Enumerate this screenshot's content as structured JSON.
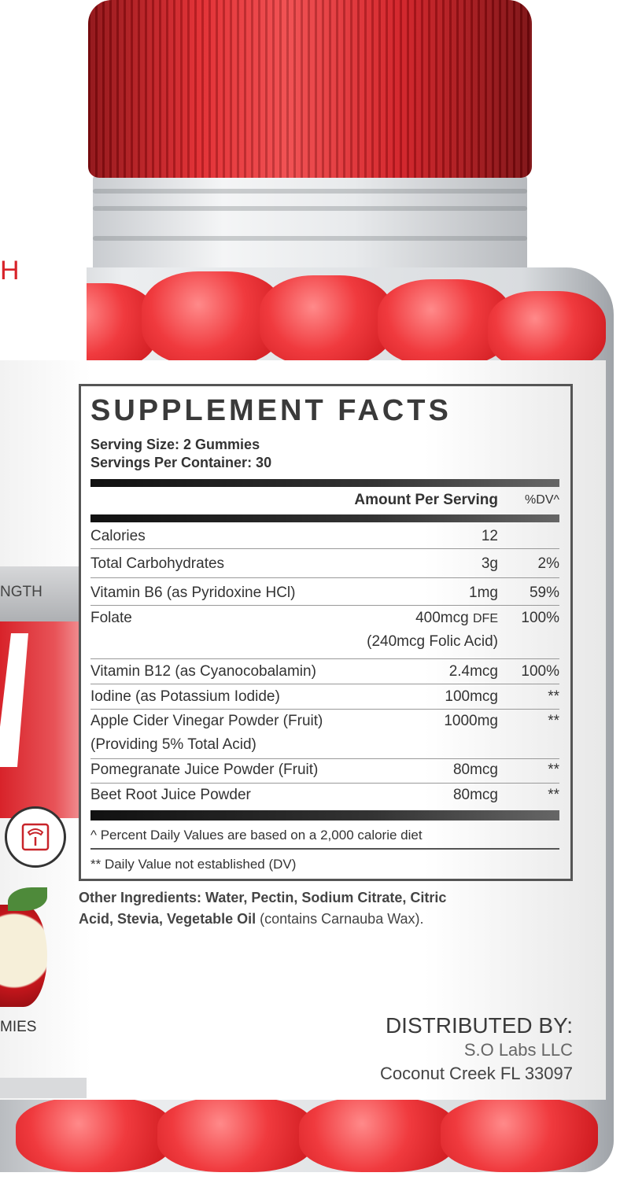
{
  "colors": {
    "cap": "#d8232a",
    "gummies": "#f03a3e",
    "label": "#ffffff",
    "text": "#333333"
  },
  "side_panel": {
    "brand_fragment": "H",
    "band_text": "NGTH",
    "count_fragment": "MIES",
    "icon": "scale-icon"
  },
  "facts": {
    "title": "SUPPLEMENT FACTS",
    "serving_size": "Serving Size: 2 Gummies",
    "servings_per_container": "Servings Per Container: 30",
    "header_amount": "Amount Per Serving",
    "header_dv": "%DV^",
    "rows": [
      {
        "name": "Calories",
        "amount": "12",
        "dv": ""
      },
      {
        "name": "Total Carbohydrates",
        "amount": "3g",
        "dv": "2%"
      },
      {
        "name": "Vitamin B6 (as Pyridoxine HCl)",
        "amount": "1mg",
        "dv": "59%"
      },
      {
        "name": "Folate",
        "amount": "400mcg",
        "amount_unit": "DFE",
        "amount_note": "(240mcg Folic Acid)",
        "dv": "100%"
      },
      {
        "name": "Vitamin B12 (as Cyanocobalamin)",
        "amount": "2.4mcg",
        "dv": "100%"
      },
      {
        "name": "Iodine (as Potassium Iodide)",
        "amount": "100mcg",
        "dv": "**"
      },
      {
        "name": "Apple Cider Vinegar Powder (Fruit)",
        "name_note": "(Providing 5% Total Acid)",
        "amount": "1000mg",
        "dv": "**"
      },
      {
        "name": "Pomegranate Juice Powder (Fruit)",
        "amount": "80mcg",
        "dv": "**"
      },
      {
        "name": "Beet Root Juice Powder",
        "amount": "80mcg",
        "dv": "**"
      }
    ],
    "footnote_1": "^ Percent Daily Values are based on a 2,000 calorie diet",
    "footnote_2": "** Daily Value not established (DV)"
  },
  "other_ingredients": {
    "label": "Other Ingredients:",
    "line1": "Water, Pectin, Sodium Citrate, Citric",
    "line2_bold": "Acid, Stevia, Vegetable Oil",
    "line2": "(contains Carnauba Wax)."
  },
  "distributor": {
    "heading": "DISTRIBUTED BY:",
    "name": "S.O Labs LLC",
    "address": "Coconut Creek FL 33097"
  }
}
